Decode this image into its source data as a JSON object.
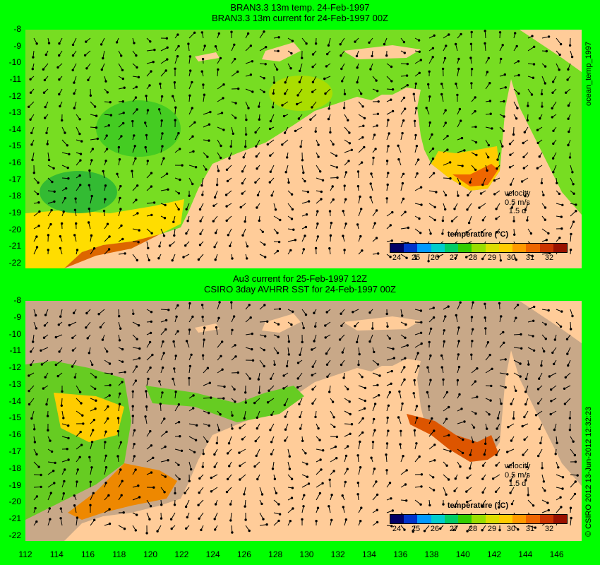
{
  "top_panel": {
    "title_line1": "BRAN3.3 13m temp. 24-Feb-1997",
    "title_line2": "BRAN3.3 13m current for 24-Feb-1997 00Z",
    "side_label": "ocean_temp_1997",
    "velocity_label": "velocity",
    "velocity_scale": "0.5 m/s",
    "velocity_days": "1.5 d",
    "colorbar_title": "temperature (°C)"
  },
  "bottom_panel": {
    "title_line1": "Au3 current for 25-Feb-1997 12Z",
    "title_line2": "CSIRO 3day AVHRR SST for 24-Feb-1997 00Z",
    "side_label": "© CSIRO 2012  13-Jun-2012 12:32:23",
    "velocity_label": "velocity",
    "velocity_scale": "0.5 m/s",
    "velocity_days": "1.5 d",
    "colorbar_title": "temperature (°C)"
  },
  "axes": {
    "lat_ticks": [
      "-8",
      "-9",
      "-10",
      "-11",
      "-12",
      "-13",
      "-14",
      "-15",
      "-16",
      "-17",
      "-18",
      "-19",
      "-20",
      "-21",
      "-22"
    ],
    "lon_ticks": [
      "112",
      "114",
      "116",
      "118",
      "120",
      "122",
      "124",
      "126",
      "128",
      "130",
      "132",
      "134",
      "136",
      "138",
      "140",
      "142",
      "144",
      "146"
    ],
    "colorbar_ticks": [
      "24",
      "25",
      "26",
      "27",
      "28",
      "29",
      "30",
      "31",
      "32"
    ]
  },
  "colors": {
    "background": "#00ff00",
    "land": "#ffcc99",
    "no_data": "#c8a888",
    "colorbar": [
      "#000066",
      "#0033cc",
      "#0099ff",
      "#00cccc",
      "#00cc66",
      "#33cc00",
      "#99dd00",
      "#dddd00",
      "#ffcc00",
      "#ff9900",
      "#ee6600",
      "#cc3300",
      "#991100"
    ]
  }
}
